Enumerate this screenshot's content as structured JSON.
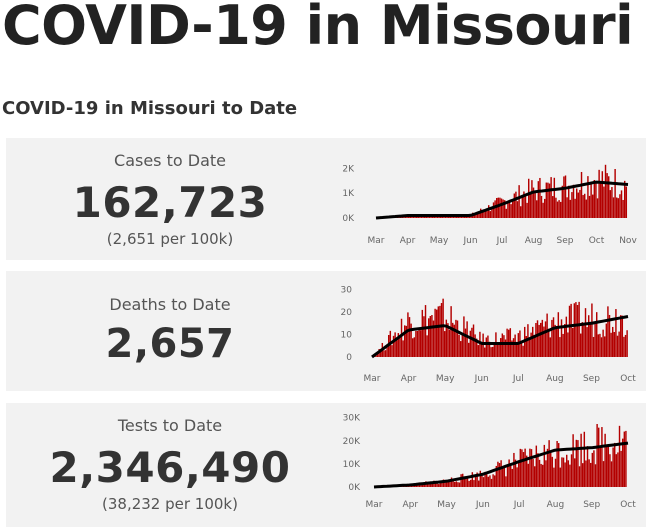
{
  "page": {
    "title": "COVID-19 in Missouri",
    "section_title": "COVID-19 in Missouri to Date"
  },
  "cards": {
    "cases": {
      "label": "Cases to Date",
      "value": "162,723",
      "sub": "(2,651 per 100k)"
    },
    "deaths": {
      "label": "Deaths to Date",
      "value": "2,657"
    },
    "tests": {
      "label": "Tests to Date",
      "value": "2,346,490",
      "sub": "(38,232 per 100k)"
    }
  },
  "colors": {
    "bars": "#b30000",
    "average_line": "#000000",
    "card_bg": "#f2f2f2"
  },
  "chart_data": [
    {
      "type": "bar",
      "overlay": "line",
      "ylim": [
        0,
        2500
      ],
      "ytick_labels": [
        "0K",
        "1K",
        "2K"
      ],
      "ytick_values": [
        0,
        1000,
        2000
      ],
      "xtick_labels": [
        "Mar",
        "Apr",
        "May",
        "Jun",
        "Jul",
        "Aug",
        "Sep",
        "Oct",
        "Nov"
      ],
      "bar_monthly_values": [
        0,
        100,
        100,
        120,
        700,
        1250,
        1400,
        1750,
        1500
      ],
      "line_monthly_values": [
        0,
        100,
        100,
        100,
        550,
        1050,
        1200,
        1450,
        1350
      ]
    },
    {
      "type": "bar",
      "overlay": "line",
      "ylim": [
        0,
        32
      ],
      "ytick_labels": [
        "0",
        "10",
        "20",
        "30"
      ],
      "ytick_values": [
        0,
        10,
        20,
        30
      ],
      "xtick_labels": [
        "Mar",
        "Apr",
        "May",
        "Jun",
        "Jul",
        "Aug",
        "Sep",
        "Oct"
      ],
      "bar_monthly_values": [
        0,
        18,
        20,
        8,
        10,
        17,
        19,
        20
      ],
      "line_monthly_values": [
        0,
        12,
        14,
        6,
        6,
        13,
        15,
        18
      ]
    },
    {
      "type": "bar",
      "overlay": "line",
      "ylim": [
        0,
        32000
      ],
      "ytick_labels": [
        "0K",
        "10K",
        "20K",
        "30K"
      ],
      "ytick_values": [
        0,
        10000,
        20000,
        30000
      ],
      "xtick_labels": [
        "Mar",
        "Apr",
        "May",
        "Jun",
        "Jul",
        "Aug",
        "Sep",
        "Oct"
      ],
      "bar_monthly_values": [
        0,
        1000,
        3000,
        6000,
        12000,
        17000,
        20000,
        24000
      ],
      "line_monthly_values": [
        0,
        900,
        2500,
        5500,
        11000,
        16000,
        17000,
        19000
      ]
    }
  ]
}
